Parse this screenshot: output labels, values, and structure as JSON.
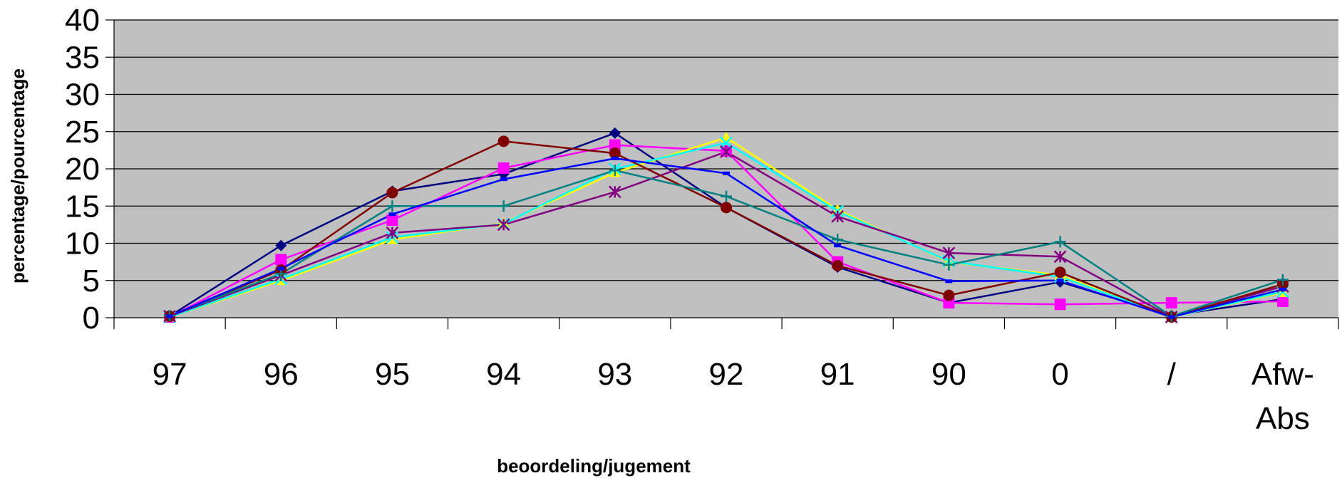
{
  "chart_data": {
    "type": "line",
    "title": "",
    "xlabel": "beoordeling/jugement",
    "ylabel": "percentage/pourcentage",
    "ylim": [
      0,
      40
    ],
    "yticks": [
      "0",
      "5",
      "10",
      "15",
      "20",
      "25",
      "30",
      "35",
      "40"
    ],
    "categories": [
      "97",
      "96",
      "95",
      "94",
      "93",
      "92",
      "91",
      "90",
      "0",
      "/",
      "Afw-Abs"
    ],
    "grid": true,
    "legend": "none",
    "plot_background": "#C0C0C0",
    "series": [
      {
        "color": "#000080",
        "marker": "diamond",
        "values": [
          0.2,
          9.7,
          17.0,
          19.3,
          24.8,
          14.8,
          6.8,
          2.0,
          4.8,
          0.3,
          2.5
        ]
      },
      {
        "color": "#FF00FF",
        "marker": "square",
        "values": [
          0.1,
          7.8,
          13.1,
          20.1,
          23.2,
          22.4,
          7.5,
          2.0,
          1.8,
          2.0,
          2.2
        ]
      },
      {
        "color": "#FFFF00",
        "marker": "triangle",
        "values": [
          0.1,
          5.0,
          10.5,
          12.7,
          19.5,
          24.2,
          14.5,
          7.5,
          5.7,
          0.1,
          3.4
        ]
      },
      {
        "color": "#00FFFF",
        "marker": "x",
        "values": [
          0.1,
          5.2,
          10.8,
          12.6,
          20.0,
          23.5,
          14.3,
          7.6,
          5.5,
          0.1,
          3.5
        ]
      },
      {
        "color": "#800080",
        "marker": "star",
        "values": [
          0.2,
          5.7,
          11.4,
          12.5,
          16.9,
          22.3,
          13.6,
          8.7,
          8.2,
          0.1,
          4.2
        ]
      },
      {
        "color": "#800000",
        "marker": "circle",
        "values": [
          0.2,
          6.4,
          16.8,
          23.7,
          22.1,
          14.8,
          7.0,
          3.0,
          6.1,
          0.1,
          4.5
        ]
      },
      {
        "color": "#008080",
        "marker": "plus",
        "values": [
          0.3,
          5.9,
          15.0,
          15.0,
          19.8,
          16.3,
          10.5,
          7.1,
          10.2,
          0.2,
          5.1
        ]
      },
      {
        "color": "#0000FF",
        "marker": "dash",
        "values": [
          0.2,
          6.6,
          13.9,
          18.6,
          21.4,
          19.4,
          9.7,
          4.9,
          5.0,
          0.1,
          3.8
        ]
      }
    ]
  }
}
